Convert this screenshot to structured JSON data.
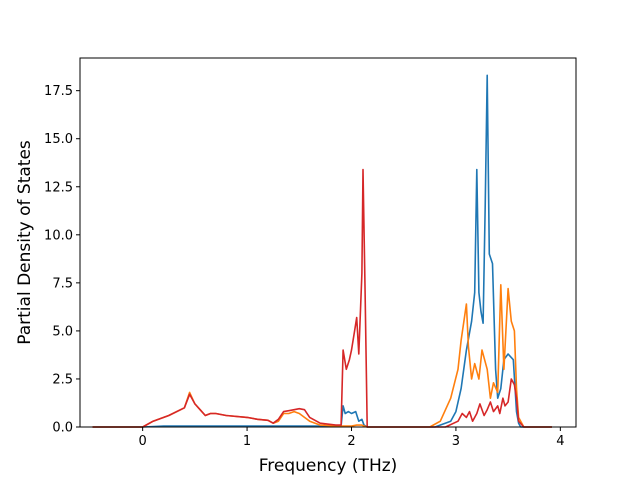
{
  "chart_data": {
    "type": "line",
    "xlabel": "Frequency (THz)",
    "ylabel": "Partial Density of States",
    "xlim": [
      -0.6,
      4.15
    ],
    "ylim": [
      0,
      19.2
    ],
    "xticks": [
      {
        "v": 0,
        "label": "0"
      },
      {
        "v": 1,
        "label": "1"
      },
      {
        "v": 2,
        "label": "2"
      },
      {
        "v": 3,
        "label": "3"
      },
      {
        "v": 4,
        "label": "4"
      }
    ],
    "yticks": [
      {
        "v": 0,
        "label": "0.0"
      },
      {
        "v": 2.5,
        "label": "2.5"
      },
      {
        "v": 5,
        "label": "5.0"
      },
      {
        "v": 7.5,
        "label": "7.5"
      },
      {
        "v": 10,
        "label": "10.0"
      },
      {
        "v": 12.5,
        "label": "12.5"
      },
      {
        "v": 15,
        "label": "15.0"
      },
      {
        "v": 17.5,
        "label": "17.5"
      }
    ],
    "grid": false,
    "series": [
      {
        "color": "#1f77b4",
        "x": [
          -0.48,
          0.0,
          0.2,
          0.4,
          0.6,
          1.0,
          1.4,
          1.6,
          1.9,
          1.92,
          1.94,
          1.97,
          2.0,
          2.04,
          2.07,
          2.1,
          2.12,
          2.15,
          2.8,
          2.95,
          3.0,
          3.05,
          3.1,
          3.15,
          3.18,
          3.2,
          3.22,
          3.24,
          3.26,
          3.28,
          3.3,
          3.32,
          3.35,
          3.38,
          3.4,
          3.43,
          3.46,
          3.5,
          3.55,
          3.58,
          3.6,
          3.62,
          3.65,
          3.92
        ],
        "y": [
          0,
          0,
          0.05,
          0.05,
          0.05,
          0.05,
          0.05,
          0.05,
          0.05,
          1.1,
          0.7,
          0.8,
          0.7,
          0.8,
          0.3,
          0.4,
          0.1,
          0,
          0,
          0.3,
          0.8,
          2.0,
          4.0,
          5.5,
          7.0,
          13.4,
          7.0,
          6.0,
          5.4,
          11.5,
          18.3,
          9.0,
          8.5,
          3.0,
          1.5,
          2.0,
          3.5,
          3.8,
          3.5,
          0.8,
          0.2,
          0,
          0,
          0
        ]
      },
      {
        "color": "#ff7f0e",
        "x": [
          -0.48,
          0.0,
          0.1,
          0.25,
          0.4,
          0.45,
          0.5,
          0.55,
          0.6,
          0.65,
          0.7,
          0.8,
          1.0,
          1.1,
          1.2,
          1.25,
          1.3,
          1.35,
          1.4,
          1.45,
          1.5,
          1.55,
          1.6,
          1.7,
          1.85,
          1.9,
          1.95,
          2.0,
          2.05,
          2.1,
          2.12,
          2.15,
          2.75,
          2.85,
          2.95,
          3.02,
          3.05,
          3.1,
          3.12,
          3.15,
          3.18,
          3.22,
          3.25,
          3.3,
          3.33,
          3.36,
          3.4,
          3.43,
          3.46,
          3.5,
          3.53,
          3.56,
          3.58,
          3.6,
          3.65,
          3.92
        ],
        "y": [
          0,
          0,
          0.3,
          0.6,
          1.0,
          1.8,
          1.2,
          0.9,
          0.6,
          0.7,
          0.7,
          0.6,
          0.5,
          0.4,
          0.35,
          0.2,
          0.3,
          0.7,
          0.7,
          0.8,
          0.7,
          0.5,
          0.3,
          0.1,
          0.05,
          0.05,
          0.05,
          0.05,
          0.1,
          0.1,
          0.05,
          0,
          0,
          0.3,
          1.5,
          3.0,
          4.5,
          6.4,
          4.2,
          2.5,
          3.3,
          2.5,
          4.0,
          3.0,
          1.5,
          2.3,
          1.8,
          7.4,
          3.0,
          7.2,
          5.5,
          5.0,
          2.0,
          0.5,
          0,
          0
        ]
      },
      {
        "color": "#d62728",
        "x": [
          -0.48,
          0.0,
          0.1,
          0.25,
          0.4,
          0.45,
          0.5,
          0.55,
          0.6,
          0.65,
          0.7,
          0.8,
          1.0,
          1.1,
          1.2,
          1.25,
          1.3,
          1.35,
          1.4,
          1.45,
          1.5,
          1.55,
          1.6,
          1.7,
          1.85,
          1.9,
          1.92,
          1.95,
          1.98,
          2.0,
          2.03,
          2.05,
          2.07,
          2.1,
          2.11,
          2.13,
          2.15,
          2.9,
          3.02,
          3.06,
          3.1,
          3.13,
          3.16,
          3.2,
          3.23,
          3.27,
          3.3,
          3.33,
          3.36,
          3.4,
          3.42,
          3.45,
          3.47,
          3.5,
          3.53,
          3.56,
          3.58,
          3.6,
          3.65,
          3.92
        ],
        "y": [
          0,
          0,
          0.3,
          0.6,
          1.0,
          1.7,
          1.2,
          0.9,
          0.6,
          0.7,
          0.7,
          0.6,
          0.5,
          0.4,
          0.35,
          0.2,
          0.4,
          0.8,
          0.85,
          0.9,
          0.95,
          0.9,
          0.5,
          0.2,
          0.1,
          0.1,
          4.0,
          3.0,
          3.5,
          4.0,
          5.0,
          5.7,
          3.8,
          8.0,
          13.4,
          7.0,
          0,
          0,
          0.3,
          0.7,
          0.5,
          0.8,
          0.3,
          0.7,
          1.2,
          0.6,
          0.9,
          1.3,
          0.8,
          1.1,
          0.7,
          1.5,
          1.1,
          1.3,
          2.5,
          2.2,
          1.5,
          0.3,
          0,
          0
        ]
      }
    ]
  }
}
